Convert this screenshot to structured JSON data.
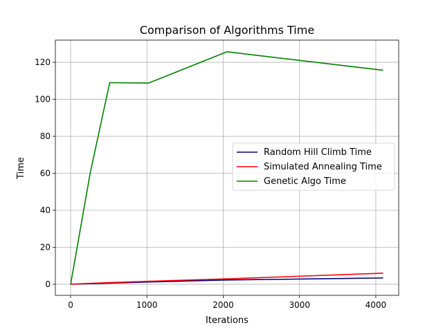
{
  "chart_data": {
    "type": "line",
    "title": "Comparison of Algorithms Time",
    "xlabel": "Iterations",
    "ylabel": "Time",
    "xlim": [
      -200,
      4300
    ],
    "ylim": [
      -6,
      132
    ],
    "xticks": [
      0,
      1000,
      2000,
      3000,
      4000
    ],
    "yticks": [
      0,
      20,
      40,
      60,
      80,
      100,
      120
    ],
    "grid": true,
    "legend_position": "center-right",
    "series": [
      {
        "name": "Random Hill Climb Time",
        "color": "#000080",
        "x": [
          0,
          256,
          512,
          1024,
          2048,
          4096
        ],
        "y": [
          0,
          0.3,
          0.6,
          1.2,
          2.3,
          3.4
        ]
      },
      {
        "name": "Simulated Annealing Time",
        "color": "#ff0000",
        "x": [
          0,
          256,
          512,
          1024,
          2048,
          4096
        ],
        "y": [
          0,
          0.5,
          0.9,
          1.6,
          2.9,
          6.0
        ]
      },
      {
        "name": "Genetic Algo Time",
        "color": "#008000",
        "x": [
          0,
          256,
          512,
          1024,
          2048,
          4096
        ],
        "y": [
          0,
          60,
          109,
          108.8,
          125.7,
          115.7
        ]
      }
    ]
  }
}
